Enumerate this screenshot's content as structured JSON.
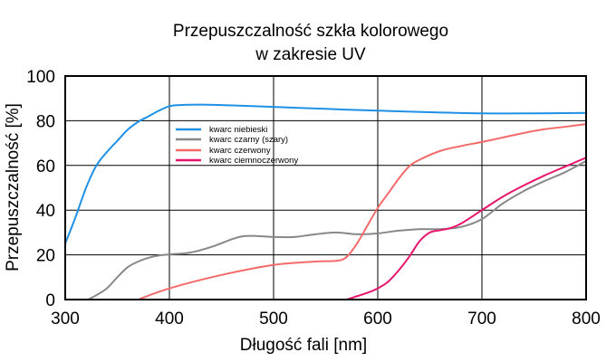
{
  "chart_data": {
    "type": "line",
    "title": [
      "Przepuszczalność szkła kolorowego",
      "w zakresie UV"
    ],
    "xlabel": "Długość fali [nm]",
    "ylabel": "Przepuszczalność [%]",
    "xlim": [
      300,
      800
    ],
    "ylim": [
      0,
      100
    ],
    "xticks": [
      300,
      400,
      500,
      600,
      700,
      800
    ],
    "yticks": [
      0,
      20,
      40,
      60,
      80,
      100
    ],
    "grid": true,
    "legend_position": "upper-left inside plot",
    "series": [
      {
        "name": "kwarc niebieski",
        "color": "#1e90e6",
        "x": [
          300,
          310,
          320,
          330,
          340,
          350,
          360,
          370,
          380,
          390,
          400,
          410,
          430,
          450,
          500,
          550,
          600,
          650,
          700,
          750,
          800
        ],
        "y": [
          25,
          37,
          50,
          60,
          66,
          71,
          76,
          79.5,
          82,
          84.5,
          86.5,
          87,
          87.2,
          87,
          86.2,
          85.3,
          84.5,
          83.8,
          83.3,
          83.3,
          83.5
        ]
      },
      {
        "name": "kwarc czarny (szary)",
        "color": "#888888",
        "x": [
          322,
          330,
          340,
          350,
          360,
          370,
          380,
          390,
          400,
          420,
          440,
          460,
          470,
          480,
          500,
          520,
          540,
          560,
          580,
          600,
          620,
          640,
          660,
          680,
          700,
          720,
          740,
          760,
          780,
          800
        ],
        "y": [
          0,
          2,
          5,
          10,
          14.5,
          17,
          18.7,
          19.7,
          20.2,
          21,
          23.5,
          27,
          28.3,
          28.5,
          28,
          28,
          29.2,
          30,
          29.2,
          29.6,
          30.8,
          31.5,
          31.5,
          32.5,
          36,
          43,
          48.5,
          53,
          57,
          62
        ]
      },
      {
        "name": "kwarc czerwony",
        "color": "#f46a6a",
        "x": [
          370,
          400,
          450,
          500,
          540,
          560,
          570,
          580,
          590,
          600,
          610,
          620,
          630,
          640,
          660,
          680,
          700,
          720,
          740,
          760,
          780,
          800
        ],
        "y": [
          0,
          5,
          11,
          15.5,
          17,
          17.3,
          19,
          25,
          33,
          41,
          47.5,
          54,
          59.5,
          62.5,
          66.5,
          68.7,
          70.5,
          72.5,
          74.5,
          76.2,
          77.3,
          78.5
        ]
      },
      {
        "name": "kwarc ciemnoczerwony",
        "color": "#e8156c",
        "x": [
          570,
          590,
          600,
          610,
          620,
          630,
          640,
          650,
          660,
          670,
          680,
          700,
          720,
          740,
          760,
          780,
          800
        ],
        "y": [
          0,
          3,
          5,
          8,
          13,
          19,
          26,
          30,
          31,
          32,
          34,
          40,
          46,
          51,
          55.5,
          59.5,
          63.5
        ]
      }
    ]
  }
}
